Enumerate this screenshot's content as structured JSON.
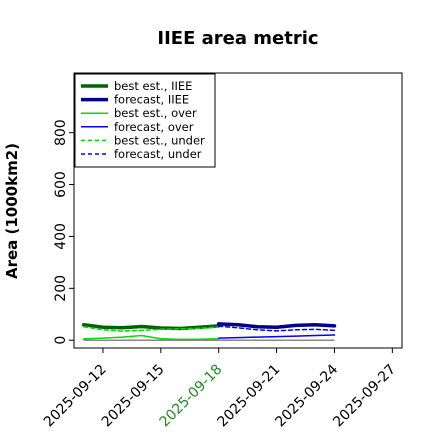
{
  "chart_data": {
    "type": "line",
    "title": "IIEE area metric",
    "xlabel": "",
    "ylabel": "Area (1000km2)",
    "ylim": [
      -30,
      1030
    ],
    "yticks": [
      0,
      200,
      400,
      600,
      800
    ],
    "x_dates": [
      "2025-09-11",
      "2025-09-12",
      "2025-09-13",
      "2025-09-14",
      "2025-09-15",
      "2025-09-16",
      "2025-09-17",
      "2025-09-18",
      "2025-09-19",
      "2025-09-20",
      "2025-09-21",
      "2025-09-22",
      "2025-09-23",
      "2025-09-24"
    ],
    "xlim": [
      "2025-09-10.5",
      "2025-09-27.5"
    ],
    "xticks": [
      {
        "date": "2025-09-12",
        "label": "2025-09-12",
        "color": "#000000"
      },
      {
        "date": "2025-09-15",
        "label": "2025-09-15",
        "color": "#000000"
      },
      {
        "date": "2025-09-18",
        "label": "2025-09-18",
        "color": "#228B22"
      },
      {
        "date": "2025-09-21",
        "label": "2025-09-21",
        "color": "#000000"
      },
      {
        "date": "2025-09-24",
        "label": "2025-09-24",
        "color": "#000000"
      },
      {
        "date": "2025-09-27",
        "label": "2025-09-27",
        "color": "#000000"
      }
    ],
    "legend_position": "top-left",
    "grid": false,
    "series": [
      {
        "name": "best est., IIEE",
        "color": "#006400",
        "width": 3.5,
        "dash": "",
        "dates": [
          "2025-09-11",
          "2025-09-12",
          "2025-09-13",
          "2025-09-14",
          "2025-09-15",
          "2025-09-16",
          "2025-09-17",
          "2025-09-18"
        ],
        "values": [
          60,
          50,
          48,
          53,
          47,
          45,
          50,
          55
        ]
      },
      {
        "name": "forecast, IIEE",
        "color": "#00008B",
        "width": 3.5,
        "dash": "",
        "dates": [
          "2025-09-18",
          "2025-09-19",
          "2025-09-20",
          "2025-09-21",
          "2025-09-22",
          "2025-09-23",
          "2025-09-24"
        ],
        "values": [
          63,
          60,
          52,
          50,
          57,
          60,
          55
        ]
      },
      {
        "name": "best est., over",
        "color": "#00DD00",
        "width": 1.5,
        "dash": "",
        "dates": [
          "2025-09-11",
          "2025-09-12",
          "2025-09-13",
          "2025-09-14",
          "2025-09-15",
          "2025-09-16",
          "2025-09-17",
          "2025-09-18"
        ],
        "values": [
          5,
          8,
          12,
          18,
          6,
          3,
          4,
          6
        ]
      },
      {
        "name": "forecast, over",
        "color": "#0000FF",
        "width": 1.5,
        "dash": "",
        "dates": [
          "2025-09-18",
          "2025-09-19",
          "2025-09-20",
          "2025-09-21",
          "2025-09-22",
          "2025-09-23",
          "2025-09-24"
        ],
        "values": [
          8,
          10,
          12,
          14,
          16,
          18,
          20
        ]
      },
      {
        "name": "best est., under",
        "color": "#00DD00",
        "width": 1.5,
        "dash": "4,3",
        "dates": [
          "2025-09-11",
          "2025-09-12",
          "2025-09-13",
          "2025-09-14",
          "2025-09-15",
          "2025-09-16",
          "2025-09-17",
          "2025-09-18"
        ],
        "values": [
          52,
          40,
          35,
          38,
          42,
          44,
          46,
          50
        ]
      },
      {
        "name": "forecast, under",
        "color": "#0000FF",
        "width": 1.5,
        "dash": "4,3",
        "dates": [
          "2025-09-18",
          "2025-09-19",
          "2025-09-20",
          "2025-09-21",
          "2025-09-22",
          "2025-09-23",
          "2025-09-24"
        ],
        "values": [
          54,
          48,
          40,
          36,
          40,
          42,
          38
        ]
      }
    ],
    "zero_line": {
      "color": "#888888",
      "y": 0,
      "dates": [
        "2025-09-11",
        "2025-09-24"
      ]
    }
  }
}
